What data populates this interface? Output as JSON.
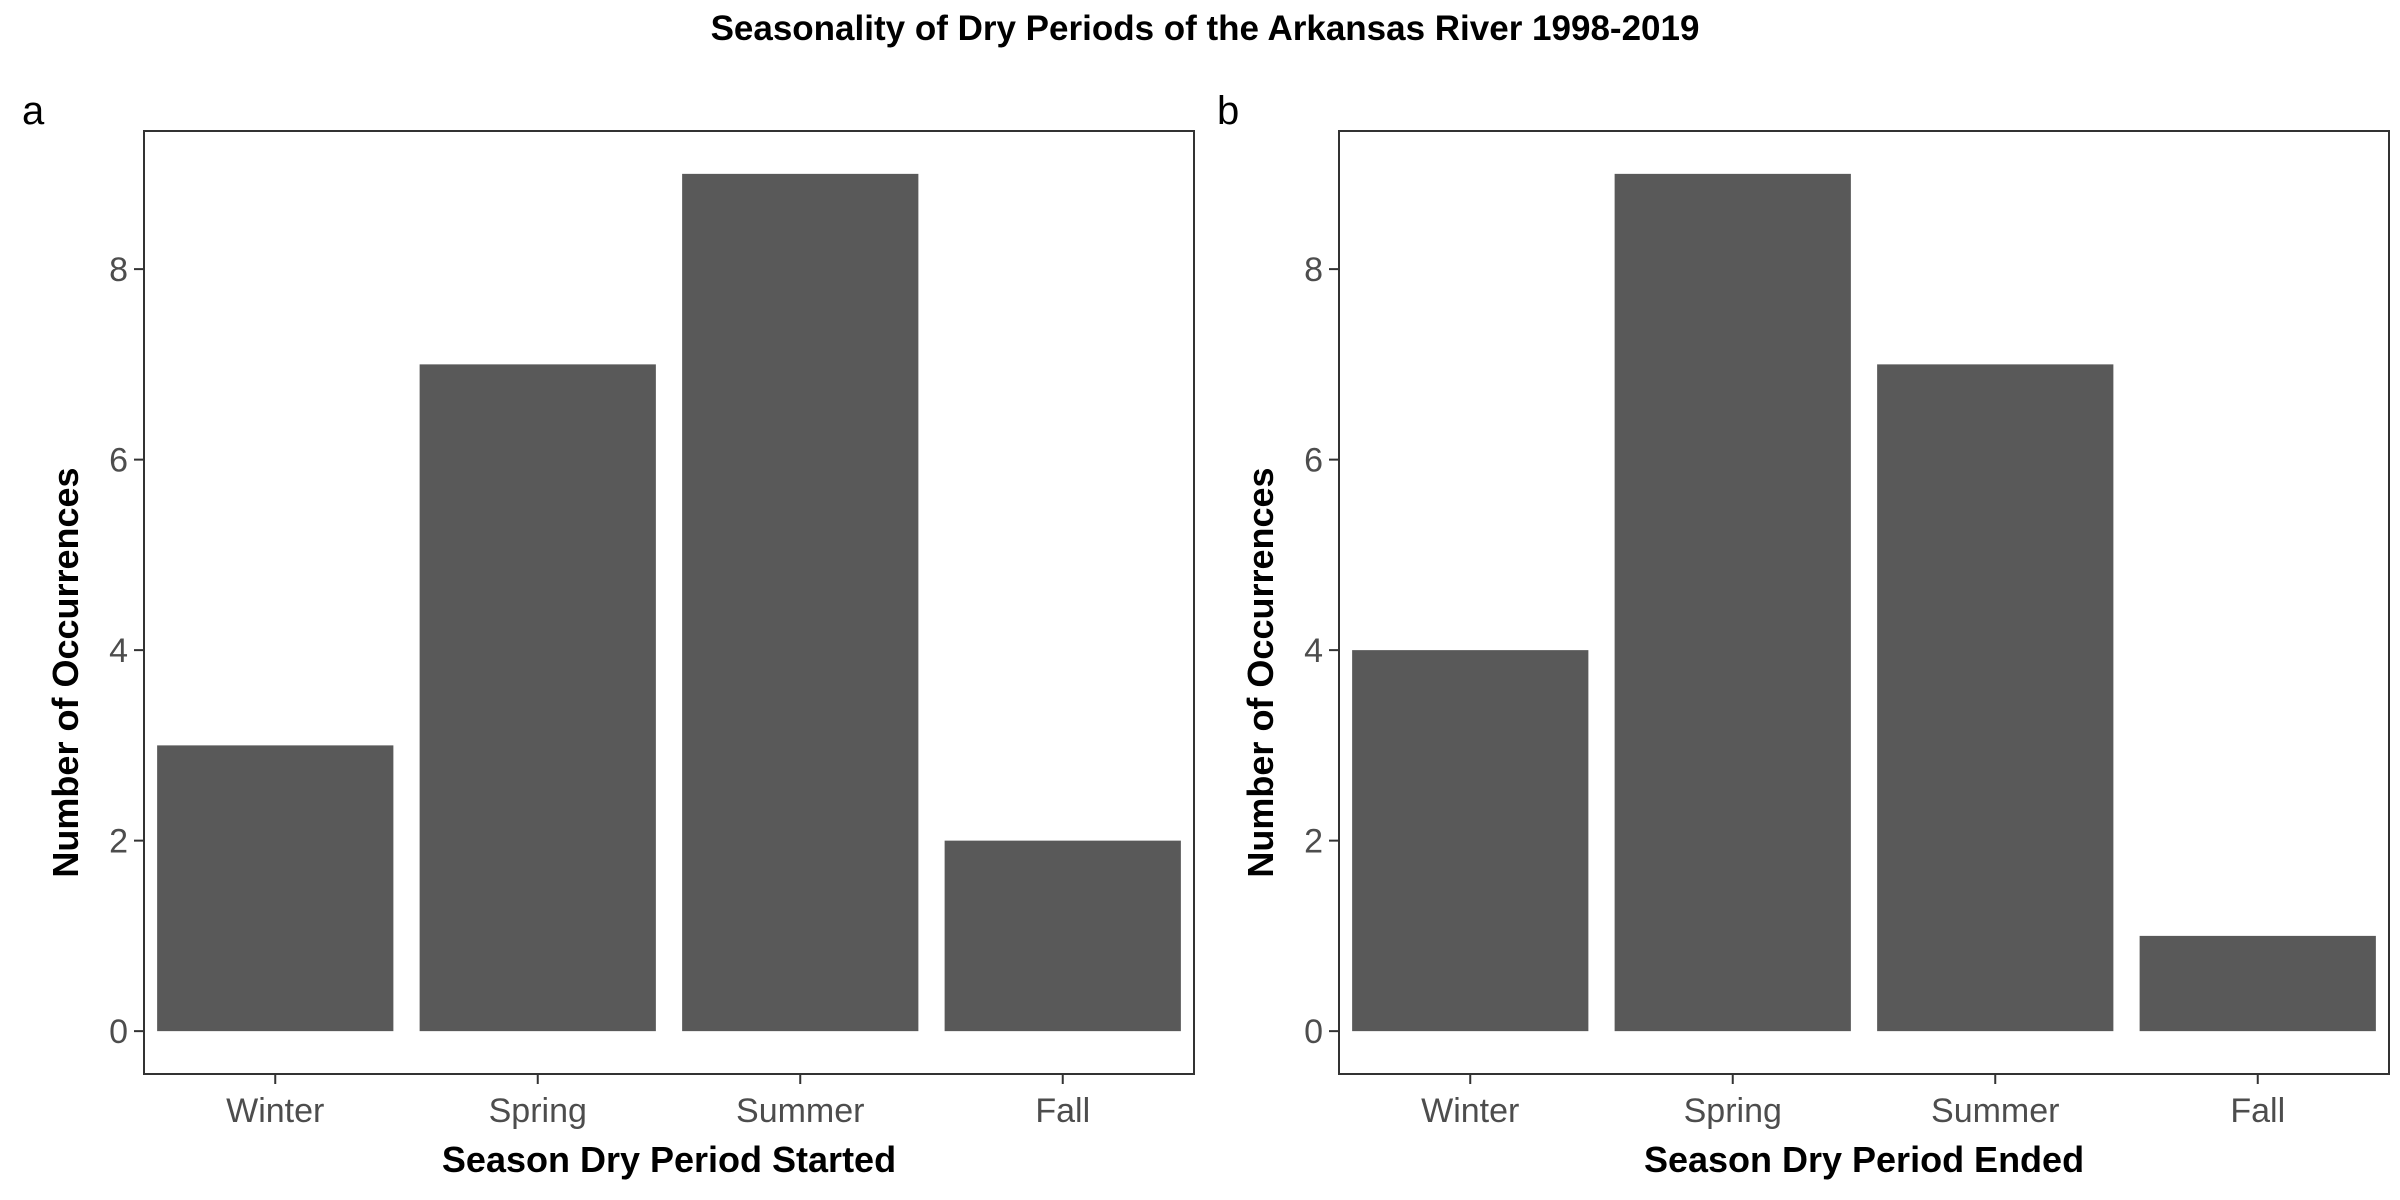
{
  "figure": {
    "title": "Seasonality of Dry Periods of the Arkansas River 1998-2019"
  },
  "chart_data": [
    {
      "type": "bar",
      "panel_label": "a",
      "categories": [
        "Winter",
        "Spring",
        "Summer",
        "Fall"
      ],
      "values": [
        3,
        7,
        9,
        2
      ],
      "xlabel": "Season Dry Period Started",
      "ylabel": "Number of Occurrences",
      "ylim": [
        -0.45,
        9.45
      ],
      "yticks": [
        0,
        2,
        4,
        6,
        8
      ],
      "bar_color": "#595959",
      "grid": false
    },
    {
      "type": "bar",
      "panel_label": "b",
      "categories": [
        "Winter",
        "Spring",
        "Summer",
        "Fall"
      ],
      "values": [
        4,
        9,
        7,
        1
      ],
      "xlabel": "Season Dry Period Ended",
      "ylabel": "Number of Occurrences",
      "ylim": [
        -0.45,
        9.45
      ],
      "yticks": [
        0,
        2,
        4,
        6,
        8
      ],
      "bar_color": "#595959",
      "grid": false
    }
  ]
}
